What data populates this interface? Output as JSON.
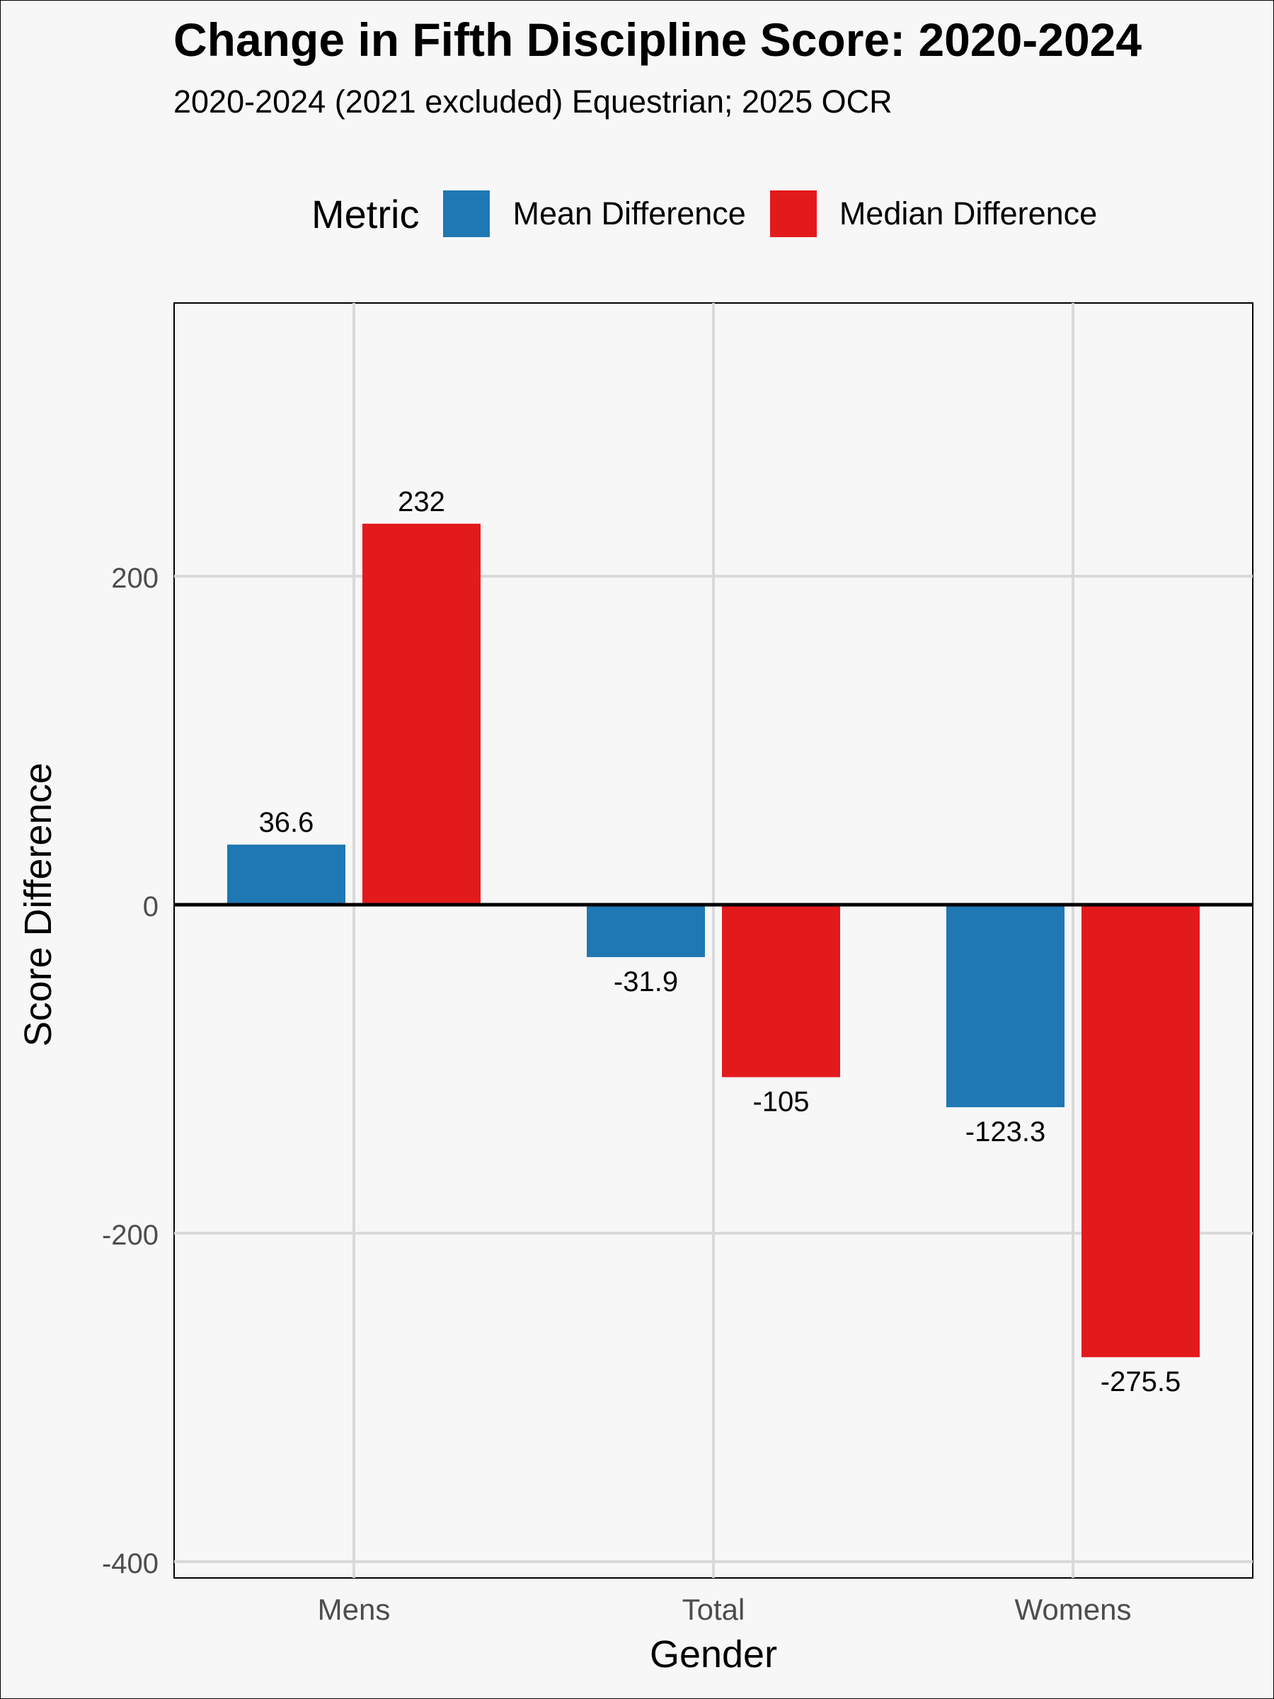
{
  "chart_data": {
    "type": "bar",
    "title": "Change in Fifth Discipline Score: 2020-2024",
    "subtitle": "2020-2024 (2021 excluded) Equestrian; 2025 OCR",
    "xlabel": "Gender",
    "ylabel": "Score Difference",
    "categories": [
      "Mens",
      "Total",
      "Womens"
    ],
    "series": [
      {
        "name": "Mean Difference",
        "color": "#1f78b4",
        "values": [
          36.6,
          -31.9,
          -123.3
        ],
        "labels": [
          "36.6",
          "-31.9",
          "-123.3"
        ]
      },
      {
        "name": "Median Difference",
        "color": "#e31a1c",
        "values": [
          232,
          -105,
          -275.5
        ],
        "labels": [
          "232",
          "-105",
          "-275.5"
        ]
      }
    ],
    "ylim": [
      -410,
      365
    ],
    "yticks": [
      200,
      0,
      -200,
      -400
    ],
    "ytick_labels": [
      "200",
      "0",
      "-200",
      "-400"
    ],
    "grid": true,
    "legend": {
      "title": "Metric",
      "position": "top"
    }
  }
}
